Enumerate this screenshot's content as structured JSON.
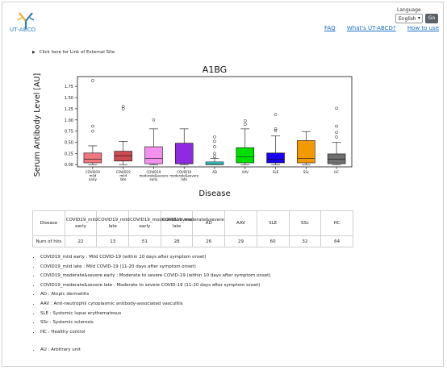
{
  "header": {
    "logo_text": "UT-ABCD",
    "language_label": "Language",
    "language_selected": "English",
    "go_label": "Go",
    "nav": [
      "FAQ",
      "What's UT-ABCD?",
      "How to use"
    ]
  },
  "external_link_label": "Click here for Link of External Site",
  "chart_data": {
    "type": "box",
    "title": "A1BG",
    "xlabel": "Disease",
    "ylabel": "Serum Antibody Level [AU]",
    "ylim": [
      -0.05,
      1.97
    ],
    "yticks": [
      0.0,
      0.25,
      0.5,
      0.75,
      1.0,
      1.25,
      1.5,
      1.75
    ],
    "categories": [
      "COVID19_mild early",
      "COVID19_mild late",
      "COVID19_moderate&severe early",
      "COVID19_moderate&severe late",
      "AD",
      "AAV",
      "SLE",
      "SSc",
      "HC"
    ],
    "tick_labels": [
      [
        "COVID19",
        "mild",
        "early"
      ],
      [
        "COVID19",
        "mild",
        "late"
      ],
      [
        "COVID19",
        "moderate&severe",
        "early"
      ],
      [
        "COVID19",
        "moderate&severe",
        "late"
      ],
      [
        "AD"
      ],
      [
        "AAV"
      ],
      [
        "SLE"
      ],
      [
        "SSc"
      ],
      [
        "HC"
      ]
    ],
    "colors": [
      "#f07880",
      "#cc4a52",
      "#f290ee",
      "#8e2be2",
      "#30d8d8",
      "#00e000",
      "#1a00f0",
      "#f29a00",
      "#6f6f6f"
    ],
    "boxes": [
      {
        "whislo": 0.0,
        "q1": 0.04,
        "median": 0.12,
        "q3": 0.26,
        "whishi": 0.42,
        "fliers": [
          0.75,
          0.86,
          1.88
        ]
      },
      {
        "whislo": 0.0,
        "q1": 0.08,
        "median": 0.2,
        "q3": 0.3,
        "whishi": 0.52,
        "fliers": [
          1.25,
          1.3
        ]
      },
      {
        "whislo": 0.0,
        "q1": 0.02,
        "median": 0.14,
        "q3": 0.4,
        "whishi": 0.8,
        "fliers": [
          1.0
        ]
      },
      {
        "whislo": 0.0,
        "q1": 0.02,
        "median": 0.02,
        "q3": 0.48,
        "whishi": 0.8,
        "fliers": []
      },
      {
        "whislo": 0.0,
        "q1": 0.0,
        "median": 0.02,
        "q3": 0.06,
        "whishi": 0.14,
        "fliers": [
          0.18,
          0.25,
          0.4,
          0.52,
          0.62
        ]
      },
      {
        "whislo": 0.0,
        "q1": 0.04,
        "median": 0.18,
        "q3": 0.38,
        "whishi": 0.8,
        "fliers": [
          0.9,
          0.98
        ]
      },
      {
        "whislo": 0.0,
        "q1": 0.04,
        "median": 0.12,
        "q3": 0.26,
        "whishi": 0.64,
        "fliers": [
          0.76,
          0.8,
          1.12
        ]
      },
      {
        "whislo": 0.0,
        "q1": 0.04,
        "median": 0.14,
        "q3": 0.54,
        "whishi": 0.74,
        "fliers": []
      },
      {
        "whislo": 0.0,
        "q1": 0.02,
        "median": 0.12,
        "q3": 0.24,
        "whishi": 0.5,
        "fliers": [
          0.62,
          0.72,
          0.86,
          1.26
        ]
      }
    ],
    "grid": false
  },
  "hits_table": {
    "row_header": "Disease",
    "hits_label": "Num of hits",
    "columns": [
      "COVID19_mild early",
      "COVID19_mild late",
      "COVID19_moderate&severe early",
      "COVID19_moderate&severe late",
      "AD",
      "AAV",
      "SLE",
      "SSc",
      "HC"
    ],
    "values": [
      "22",
      "13",
      "51",
      "28",
      "26",
      "29",
      "60",
      "32",
      "64"
    ]
  },
  "legend_items": [
    "COVID19_mild early : Mild COVID-19 (within 10 days after symptom onset)",
    "COVID19_mild late : Mild COVID-19 (11-20 days after symptom onset)",
    "COVID19_moderate&severe early : Moderate to severe COVID-19 (within 10 days after symptom onset)",
    "COVID19_moderate&severe late : Moderate to severe COVID-19 (11-20 days after symptom onset)",
    "AD : Atopic dermatitis",
    "AAV : Anti-neutrophil cytoplasmic antibody-associated vasculitis",
    "SLE : Systemic lupus erythematosus",
    "SSc : Systemic sclerosis",
    "HC : Healthy control"
  ],
  "au_note": "AU : Arbitrary unit"
}
